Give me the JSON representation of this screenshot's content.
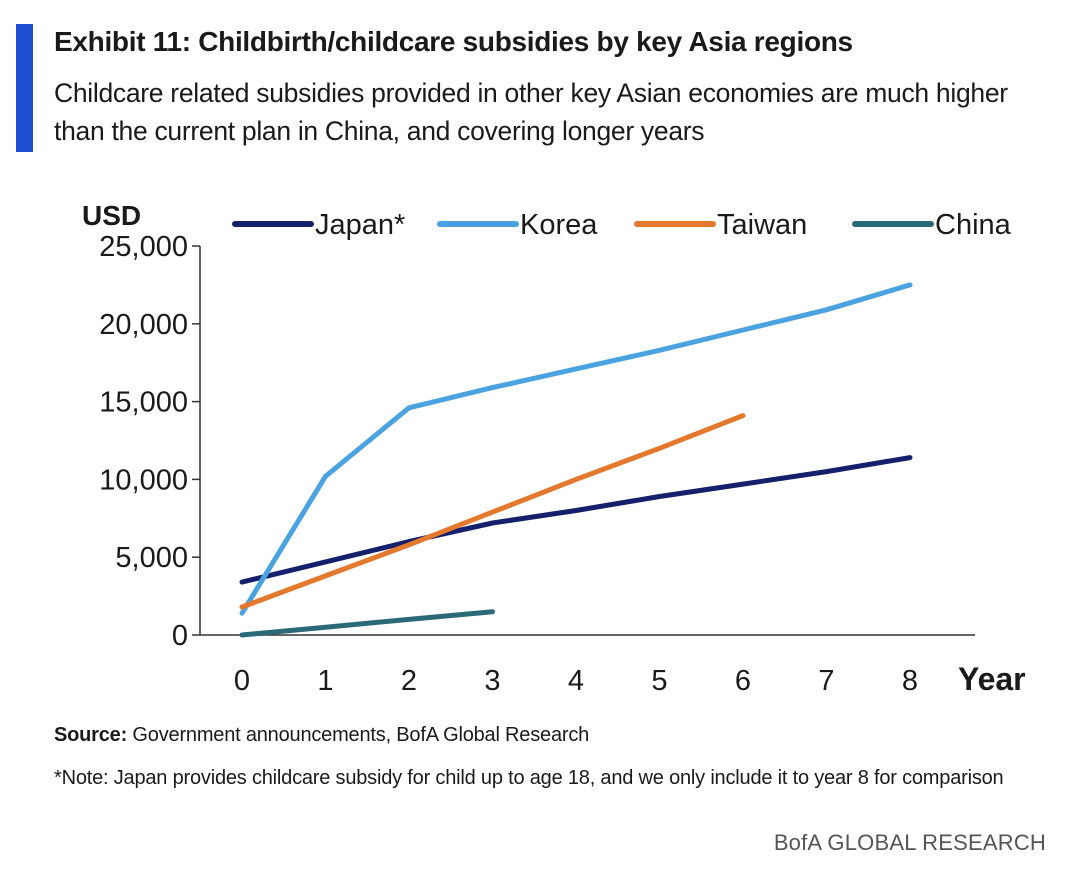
{
  "header": {
    "title": "Exhibit 11: Childbirth/childcare subsidies by key Asia regions",
    "subtitle": "Childcare related subsidies provided in other key Asian economies are much higher than the current plan in China, and covering longer years"
  },
  "chart_data": {
    "type": "line",
    "title": "Exhibit 11: Childbirth/childcare subsidies by key Asia regions",
    "ylabel": "USD",
    "xlabel": "Year",
    "ylim": [
      0,
      25000
    ],
    "xlim": [
      0,
      8
    ],
    "y_ticks": [
      0,
      5000,
      10000,
      15000,
      20000,
      25000
    ],
    "y_tick_labels": [
      "0",
      "5,000",
      "10,000",
      "15,000",
      "20,000",
      "25,000"
    ],
    "x_ticks": [
      0,
      1,
      2,
      3,
      4,
      5,
      6,
      7,
      8
    ],
    "x_tick_labels": [
      "0",
      "1",
      "2",
      "3",
      "4",
      "5",
      "6",
      "7",
      "8"
    ],
    "grid": false,
    "legend_position": "top",
    "series": [
      {
        "name": "Japan*",
        "color": "#14206b",
        "x": [
          0,
          1,
          2,
          3,
          4,
          5,
          6,
          7,
          8
        ],
        "values": [
          3400,
          4700,
          6000,
          7200,
          8000,
          8900,
          9700,
          10500,
          11400
        ]
      },
      {
        "name": "Korea",
        "color": "#4aa3e0",
        "x": [
          0,
          1,
          2,
          3,
          4,
          5,
          6,
          7,
          8
        ],
        "values": [
          1400,
          10200,
          14600,
          15900,
          17100,
          18300,
          19600,
          20900,
          22500
        ]
      },
      {
        "name": "Taiwan",
        "color": "#e4782c",
        "x": [
          0,
          1,
          2,
          3,
          4,
          5,
          6
        ],
        "values": [
          1800,
          3800,
          5800,
          7900,
          10000,
          12000,
          14100
        ]
      },
      {
        "name": "China",
        "color": "#2a6a78",
        "x": [
          0,
          1,
          2,
          3
        ],
        "values": [
          0,
          500,
          1000,
          1500
        ]
      }
    ]
  },
  "footer": {
    "source_label": "Source:",
    "source_text": " Government announcements, BofA Global Research",
    "note": "*Note: Japan provides childcare subsidy for child up to age 18, and we only include it to year 8 for comparison",
    "brand": "BofA GLOBAL RESEARCH"
  }
}
